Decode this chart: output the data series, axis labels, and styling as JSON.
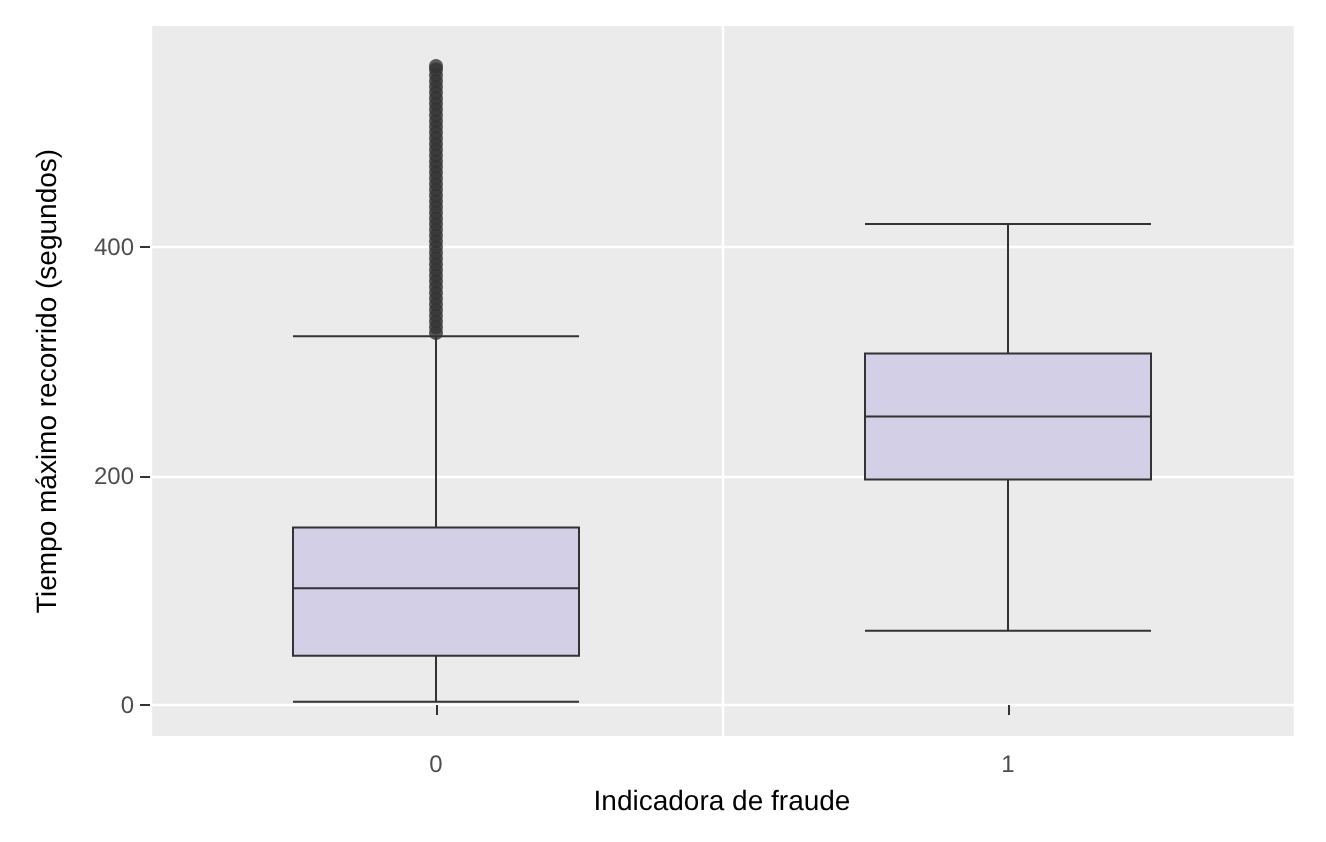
{
  "chart_data": {
    "type": "box",
    "xlabel": "Indicadora de fraude",
    "ylabel": "Tiempo máximo recorrido (segundos)",
    "categories": [
      "0",
      "1"
    ],
    "boxes": [
      {
        "low": 3,
        "q1": 43,
        "median": 102,
        "q3": 155,
        "high": 322,
        "outliers": [
          325,
          330,
          335,
          340,
          345,
          350,
          355,
          360,
          365,
          370,
          375,
          380,
          385,
          390,
          395,
          400,
          405,
          410,
          415,
          420,
          425,
          430,
          435,
          440,
          445,
          450,
          455,
          460,
          465,
          470,
          475,
          480,
          485,
          490,
          495,
          500,
          505,
          510,
          515,
          520,
          525,
          530,
          535,
          540,
          545,
          550,
          555,
          558
        ]
      },
      {
        "low": 65,
        "q1": 197,
        "median": 252,
        "q3": 307,
        "high": 420
      }
    ],
    "color": "#d3cfe6",
    "ylim": [
      -27,
      593
    ],
    "yticks": [
      0,
      200,
      400
    ],
    "grid": true
  }
}
